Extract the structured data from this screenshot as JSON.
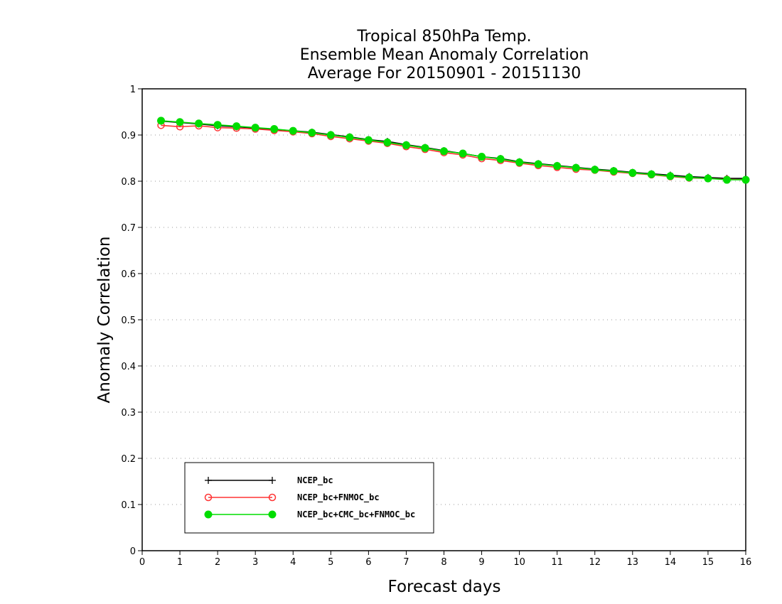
{
  "chart_data": {
    "type": "line",
    "title": [
      "Tropical 850hPa Temp.",
      "Ensemble Mean Anomaly Correlation",
      "Average For 20150901 - 20151130"
    ],
    "xlabel": "Forecast days",
    "ylabel": "Anomaly Correlation",
    "xlim": [
      0,
      16
    ],
    "ylim": [
      0,
      1
    ],
    "xticks": [
      "0",
      "1",
      "2",
      "3",
      "4",
      "5",
      "6",
      "7",
      "8",
      "9",
      "10",
      "11",
      "12",
      "13",
      "14",
      "15",
      "16"
    ],
    "yticks": [
      "0",
      "0.1",
      "0.2",
      "0.3",
      "0.4",
      "0.5",
      "0.6",
      "0.7",
      "0.8",
      "0.9",
      "1"
    ],
    "grid": "horizontal dotted",
    "legend_position": "bottom-left",
    "x": [
      0.5,
      1,
      1.5,
      2,
      2.5,
      3,
      3.5,
      4,
      4.5,
      5,
      5.5,
      6,
      6.5,
      7,
      7.5,
      8,
      8.5,
      9,
      9.5,
      10,
      10.5,
      11,
      11.5,
      12,
      12.5,
      13,
      13.5,
      14,
      14.5,
      15,
      15.5,
      16
    ],
    "series": [
      {
        "name": "NCEP_bc",
        "color": "#000000",
        "marker": "plus",
        "values": [
          0.93,
          0.927,
          0.924,
          0.92,
          0.918,
          0.915,
          0.912,
          0.909,
          0.906,
          0.901,
          0.896,
          0.89,
          0.886,
          0.879,
          0.873,
          0.866,
          0.86,
          0.853,
          0.849,
          0.842,
          0.838,
          0.834,
          0.83,
          0.826,
          0.823,
          0.819,
          0.816,
          0.813,
          0.81,
          0.808,
          0.806,
          0.806
        ]
      },
      {
        "name": "NCEP_bc+FNMOC_bc",
        "color": "#ff3333",
        "marker": "open-circle",
        "values": [
          0.921,
          0.918,
          0.92,
          0.916,
          0.915,
          0.913,
          0.91,
          0.907,
          0.903,
          0.897,
          0.892,
          0.887,
          0.882,
          0.875,
          0.869,
          0.862,
          0.857,
          0.849,
          0.845,
          0.839,
          0.834,
          0.83,
          0.826,
          0.824,
          0.82,
          0.817,
          0.814,
          0.81,
          0.807,
          0.806,
          0.804,
          0.803
        ]
      },
      {
        "name": "NCEP_bc+CMC_bc+FNMOC_bc",
        "color": "#00dd00",
        "marker": "filled-circle",
        "values": [
          0.931,
          0.928,
          0.925,
          0.922,
          0.919,
          0.916,
          0.913,
          0.909,
          0.905,
          0.9,
          0.895,
          0.889,
          0.884,
          0.878,
          0.872,
          0.865,
          0.86,
          0.853,
          0.848,
          0.841,
          0.837,
          0.833,
          0.829,
          0.825,
          0.822,
          0.818,
          0.815,
          0.811,
          0.808,
          0.806,
          0.803,
          0.803
        ]
      }
    ]
  }
}
